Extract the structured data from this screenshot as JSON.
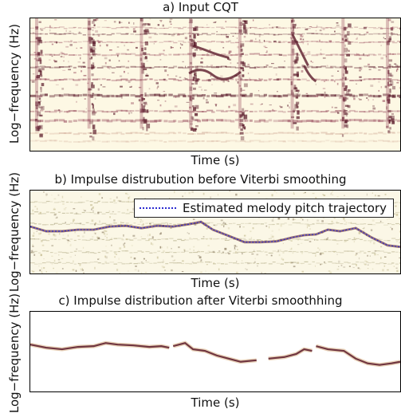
{
  "panels": [
    {
      "title": "a) Input CQT",
      "xlabel": "Time (s)",
      "ylabel": "Log−frequency (Hz)"
    },
    {
      "title": "b) Impulse distrubution before Viterbi smoothing",
      "xlabel": "Time (s)",
      "ylabel": "Log−frequency (Hz)"
    },
    {
      "title": "c) Impulse distribution after Viterbi smoothhing",
      "xlabel": "Time (s)",
      "ylabel": "Log−frequency (Hz)"
    }
  ],
  "legend": {
    "label": "Estimated melody pitch trajectory",
    "color": "#2b2bd0"
  },
  "colors": {
    "background": "#fdf8e4",
    "dark": "#5a1a2a",
    "mid": "#9a5060",
    "light": "#d9b9a6"
  }
}
